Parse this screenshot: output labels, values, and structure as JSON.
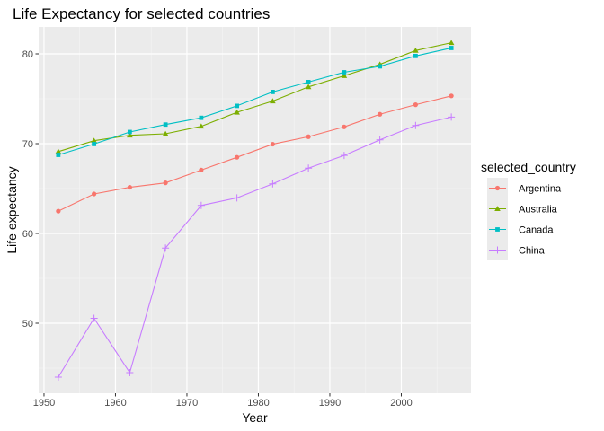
{
  "chart_data": {
    "type": "line",
    "title": "Life Expectancy for selected countries",
    "xlabel": "Year",
    "ylabel": "Life expectancy",
    "xlim": [
      1949.25,
      2009.75
    ],
    "ylim": [
      42.2,
      83.0
    ],
    "x_ticks": [
      1950,
      1960,
      1970,
      1980,
      1990,
      2000
    ],
    "y_ticks": [
      50,
      60,
      70,
      80
    ],
    "grid": true,
    "legend": {
      "title": "selected_country",
      "position": "right"
    },
    "x": [
      1952,
      1957,
      1962,
      1967,
      1972,
      1977,
      1982,
      1987,
      1992,
      1997,
      2002,
      2007
    ],
    "series": [
      {
        "name": "Argentina",
        "color": "#F8766D",
        "shape": "circle",
        "values": [
          62.485,
          64.399,
          65.142,
          65.634,
          67.065,
          68.481,
          69.942,
          70.774,
          71.868,
          73.275,
          74.34,
          75.32
        ]
      },
      {
        "name": "Australia",
        "color": "#7CAE00",
        "shape": "triangle",
        "values": [
          69.12,
          70.33,
          70.93,
          71.1,
          71.93,
          73.49,
          74.74,
          76.32,
          77.56,
          78.83,
          80.37,
          81.235
        ]
      },
      {
        "name": "Canada",
        "color": "#00BFC4",
        "shape": "square",
        "values": [
          68.75,
          69.96,
          71.3,
          72.13,
          72.88,
          74.21,
          75.76,
          76.86,
          77.95,
          78.61,
          79.77,
          80.653
        ]
      },
      {
        "name": "China",
        "color": "#C77CFF",
        "shape": "plus",
        "values": [
          44.0,
          50.549,
          44.501,
          58.381,
          63.119,
          63.967,
          65.525,
          67.274,
          68.69,
          70.426,
          72.028,
          72.961
        ]
      }
    ]
  }
}
